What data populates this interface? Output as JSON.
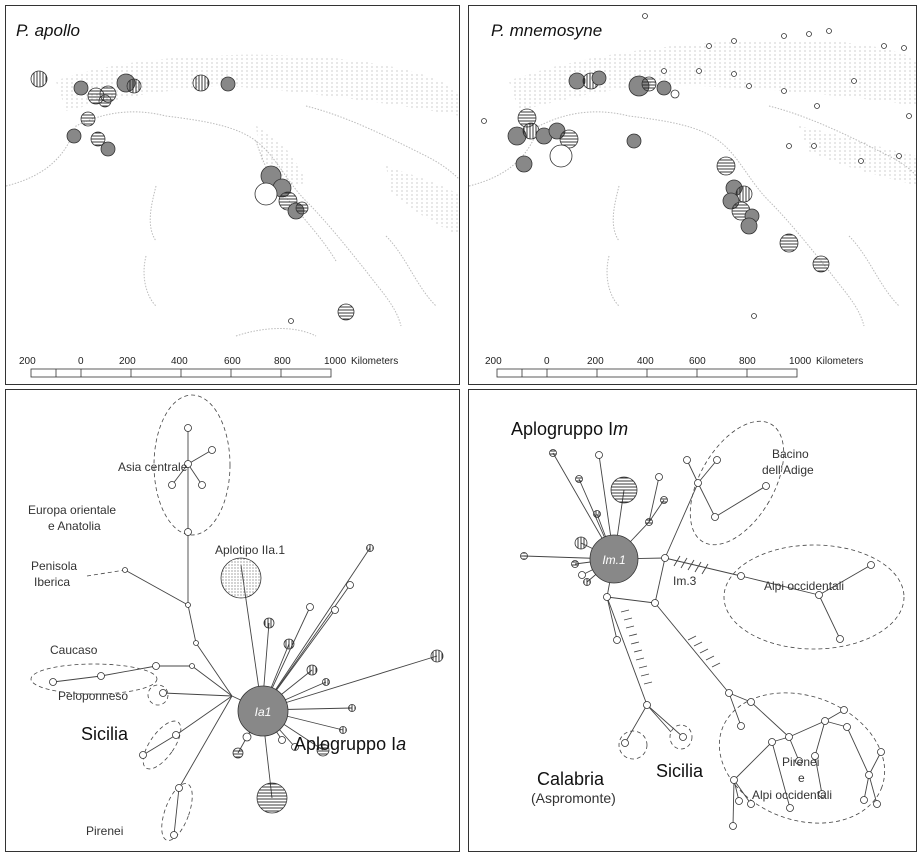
{
  "maps": {
    "apollo": {
      "species": "P. apollo",
      "scale_ticks": [
        "200",
        "0",
        "200",
        "400",
        "600",
        "800",
        "1000"
      ],
      "scale_unit": "Kilometers"
    },
    "mnemosyne": {
      "species": "P. mnemosyne",
      "scale_ticks": [
        "200",
        "0",
        "200",
        "400",
        "600",
        "800",
        "1000"
      ],
      "scale_unit": "Kilometers"
    }
  },
  "network_apollo": {
    "regions": {
      "asia": "Asia centrale",
      "europa1": "Europa orientale",
      "europa2": "e Anatolia",
      "iberica1": "Penisola",
      "iberica2": "Iberica",
      "caucaso": "Caucaso",
      "peloponneso": "Peloponneso",
      "sicilia": "Sicilia",
      "pirenei": "Pirenei"
    },
    "aplotipo": "Aplotipo IIa.1",
    "hub": "Ia1",
    "group_prefix": "Aplogruppo I",
    "group_suffix": "a"
  },
  "network_mnemosyne": {
    "group_prefix": "Aplogruppo I",
    "group_suffix": "m",
    "hub": "Im.1",
    "im3": "Im.3",
    "regions": {
      "adige1": "Bacino",
      "adige2": "dell'Adige",
      "alpi": "Alpi occidentali",
      "calabria1": "Calabria",
      "calabria2": "(Aspromonte)",
      "sicilia": "Sicilia",
      "pirenei1": "Pirenei",
      "pirenei2": "e",
      "pirenei3": "Alpi occidentali"
    }
  }
}
